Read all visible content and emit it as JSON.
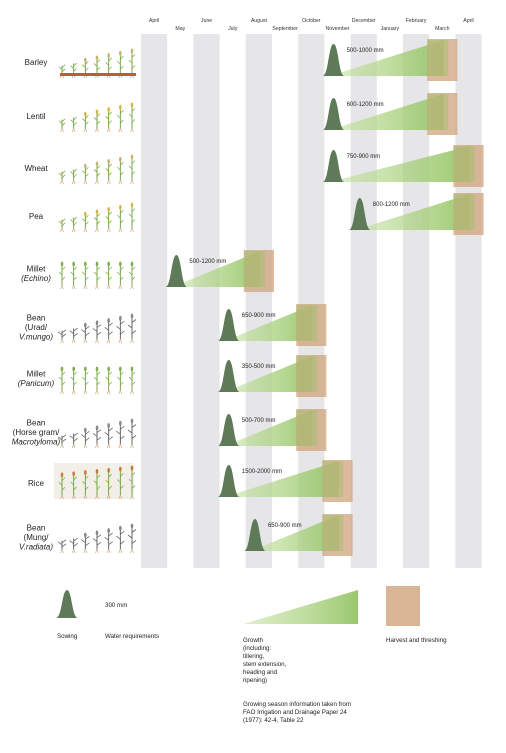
{
  "months": [
    "April",
    "May",
    "June",
    "July",
    "August",
    "September",
    "October",
    "November",
    "December",
    "January",
    "February",
    "March",
    "April"
  ],
  "crops": [
    {
      "label": [
        "Barley"
      ],
      "italic": [
        false
      ],
      "water": "500-1000 mm",
      "sowing": "November",
      "harvest": "March"
    },
    {
      "label": [
        "Lentil"
      ],
      "italic": [
        false
      ],
      "water": "600-1200 mm",
      "sowing": "November",
      "harvest": "March"
    },
    {
      "label": [
        "Wheat"
      ],
      "italic": [
        false
      ],
      "water": "750-900 mm",
      "sowing": "November",
      "harvest": "April"
    },
    {
      "label": [
        "Pea"
      ],
      "italic": [
        false
      ],
      "water": "800-1200 mm",
      "sowing": "December",
      "harvest": "April"
    },
    {
      "label": [
        "Millet",
        "(Echino)"
      ],
      "italic": [
        false,
        true
      ],
      "water": "500-1200 mm",
      "sowing": "May",
      "harvest": "August"
    },
    {
      "label": [
        "Bean",
        "(Urad/",
        "V.mungo)"
      ],
      "italic": [
        false,
        false,
        true
      ],
      "water": "650-900 mm",
      "sowing": "July",
      "harvest": "October"
    },
    {
      "label": [
        "Millet",
        "(Panicum)"
      ],
      "italic": [
        false,
        true
      ],
      "water": "350-500 mm",
      "sowing": "July",
      "harvest": "October"
    },
    {
      "label": [
        "Bean",
        "(Horse gram/",
        "Macrotyloma)"
      ],
      "italic": [
        false,
        false,
        true
      ],
      "water": "500-700 mm",
      "sowing": "July",
      "harvest": "October"
    },
    {
      "label": [
        "Rice"
      ],
      "italic": [
        false
      ],
      "water": "1500-2000 mm",
      "sowing": "July",
      "harvest": "November"
    },
    {
      "label": [
        "Bean",
        "(Mung/",
        "V.radiata)"
      ],
      "italic": [
        false,
        false,
        true
      ],
      "water": "650-900 mm",
      "sowing": "August",
      "harvest": "November"
    }
  ],
  "legend": {
    "sowing_label": "Sowing",
    "water_scale": "300 mm",
    "water_label": "Water requirements",
    "growth_label": [
      "Growth",
      "(including:",
      "tillering,",
      "stem extension,",
      "heading and",
      "ripening)"
    ],
    "harvest_label": "Harvest and threshing",
    "source_note": [
      "Growing season information taken from",
      "FAO Irrigation and Drainage Paper 24",
      "(1977): 42-4, Table 22"
    ]
  },
  "colors": {
    "stripe": "#e6e6e8",
    "sowing": "#5e7a58",
    "growth": "#9fcc6f",
    "harvest": "#cfa37c"
  }
}
